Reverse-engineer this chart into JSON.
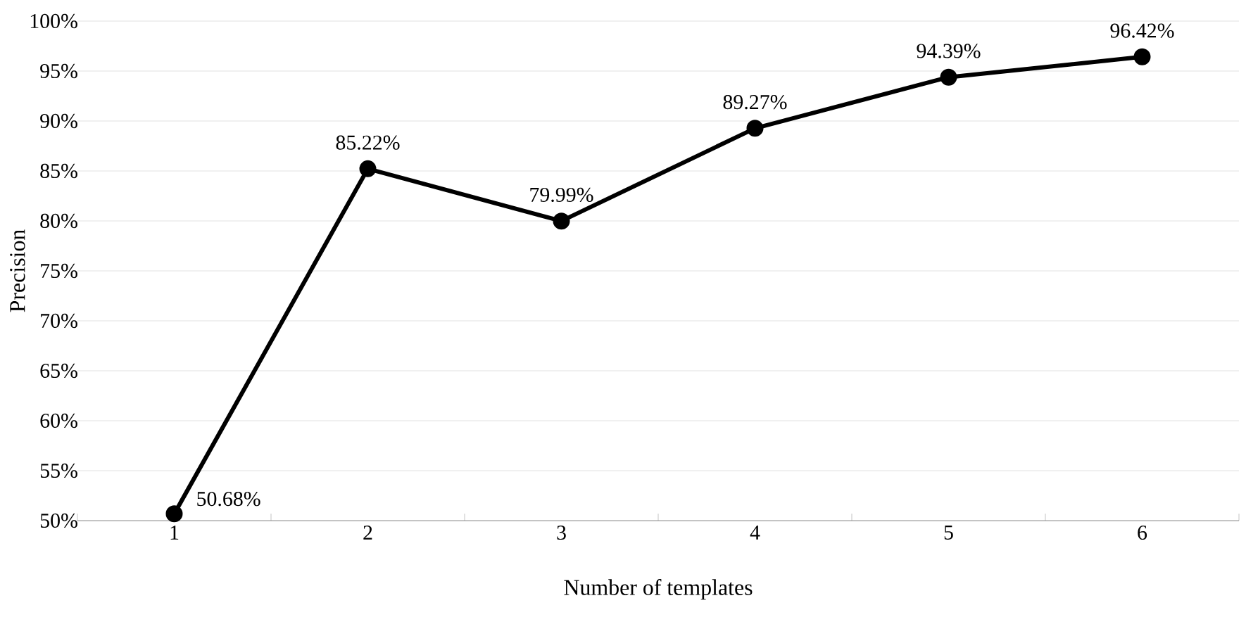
{
  "chart_data": {
    "type": "line",
    "xlabel": "Number of templates",
    "ylabel": "Precision",
    "categories": [
      "1",
      "2",
      "3",
      "4",
      "5",
      "6"
    ],
    "series": [
      {
        "color": "#000000",
        "values": [
          50.68,
          85.22,
          79.99,
          89.27,
          94.39,
          96.42
        ],
        "value_labels": [
          "50.68%",
          "85.22%",
          "79.99%",
          "89.27%",
          "94.39%",
          "96.42%"
        ]
      }
    ],
    "ylim": [
      50,
      100
    ],
    "yticks": [
      {
        "value": 50,
        "label": "50%"
      },
      {
        "value": 55,
        "label": "55%"
      },
      {
        "value": 60,
        "label": "60%"
      },
      {
        "value": 65,
        "label": "65%"
      },
      {
        "value": 70,
        "label": "70%"
      },
      {
        "value": 75,
        "label": "75%"
      },
      {
        "value": 80,
        "label": "80%"
      },
      {
        "value": 85,
        "label": "85%"
      },
      {
        "value": 90,
        "label": "90%"
      },
      {
        "value": 95,
        "label": "95%"
      },
      {
        "value": 100,
        "label": "100%"
      }
    ],
    "grid": "y",
    "marker": "circle",
    "line_style": "solid"
  }
}
